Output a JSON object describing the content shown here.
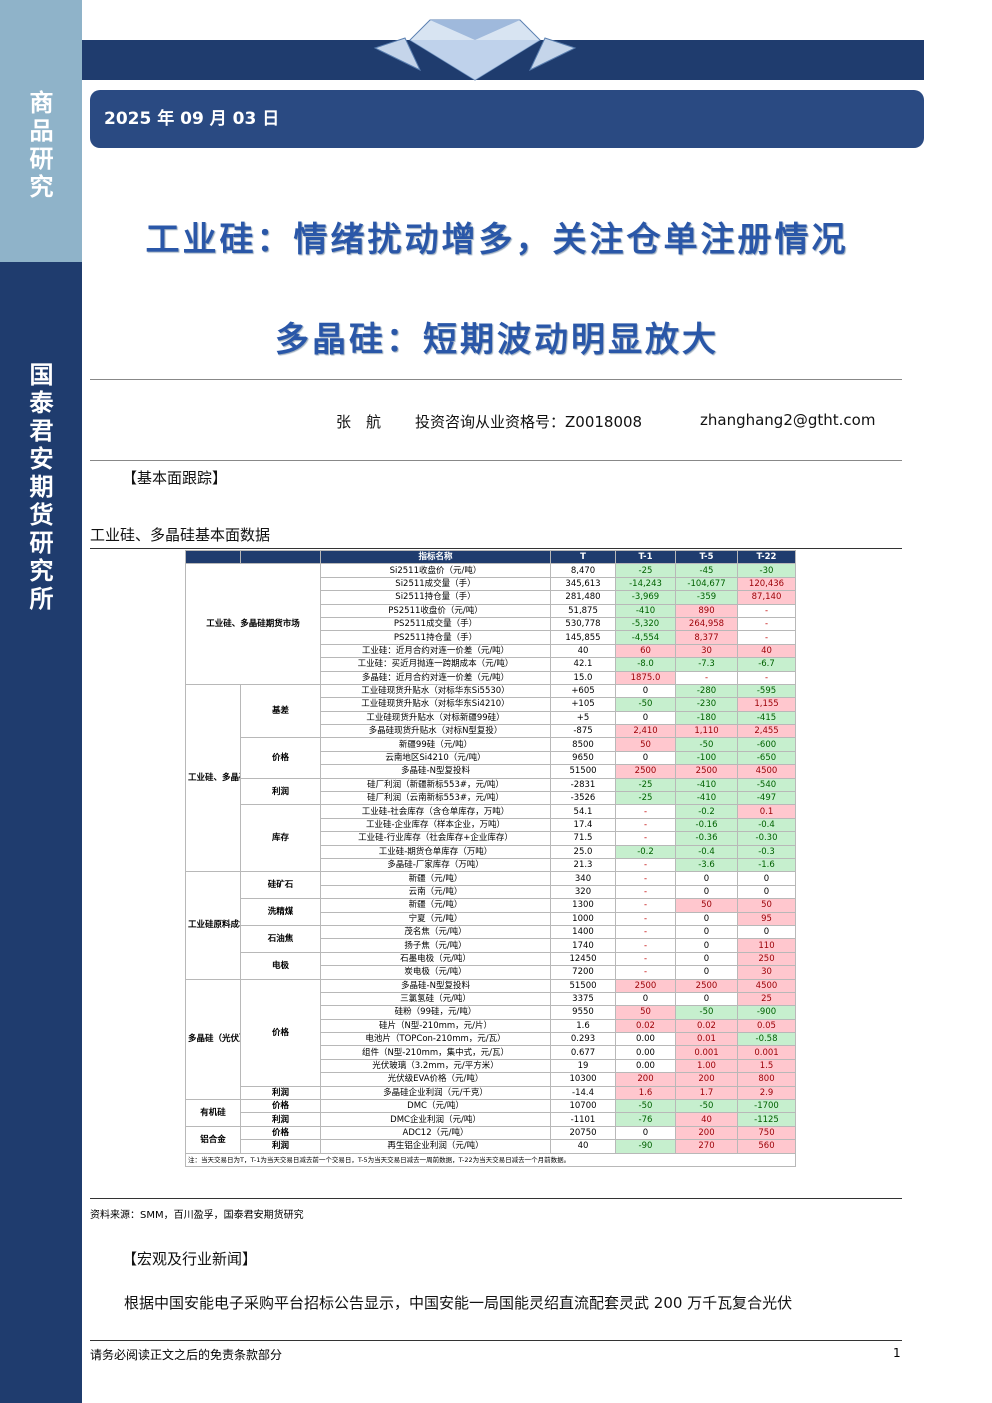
{
  "sidebar": {
    "top": "商品研究",
    "bottom": "国泰君安期货研究所"
  },
  "header": {
    "date": "2025 年 09 月 03 日",
    "title1": "工业硅：情绪扰动增多，关注仓单注册情况",
    "title2": "多晶硅：短期波动明显放大"
  },
  "author": {
    "name": "张　航",
    "license": "投资咨询从业资格号：Z0018008",
    "email": "zhanghang2@gtht.com"
  },
  "section1": "【基本面跟踪】",
  "table_title": "工业硅、多晶硅基本面数据",
  "table": {
    "header": [
      "指标名称",
      "T",
      "T-1",
      "T-5",
      "T-22"
    ],
    "groups": [
      {
        "label": "工业硅、多晶硅期货市场",
        "subgroups": [
          {
            "rows": [
              [
                "Si2511收盘价（元/吨）",
                "8,470",
                "-25",
                "-45",
                "-30"
              ],
              [
                "Si2511成交量（手）",
                "345,613",
                "-14,243",
                "-104,677",
                "120,436"
              ],
              [
                "Si2511持仓量（手）",
                "281,480",
                "-3,969",
                "-359",
                "87,140"
              ],
              [
                "PS2511收盘价（元/吨）",
                "51,875",
                "-410",
                "890",
                "-"
              ],
              [
                "PS2511成交量（手）",
                "530,778",
                "-5,320",
                "264,958",
                "-"
              ],
              [
                "PS2511持仓量（手）",
                "145,855",
                "-4,554",
                "8,377",
                "-"
              ],
              [
                "工业硅：近月合约对连一价差（元/吨）",
                "40",
                "60",
                "30",
                "40"
              ],
              [
                "工业硅：买近月抛连一跨期成本（元/吨）",
                "42.1",
                "-8.0",
                "-7.3",
                "-6.7"
              ],
              [
                "多晶硅：近月合约对连一价差（元/吨）",
                "15.0",
                "1875.0",
                "-",
                "-"
              ]
            ]
          }
        ]
      },
      {
        "label": "工业硅、多晶硅",
        "subgroups": [
          {
            "label": "基差",
            "rows": [
              [
                "工业硅现货升贴水（对标华东Si5530）",
                "+605",
                "0",
                "-280",
                "-595"
              ],
              [
                "工业硅现货升贴水（对标华东Si4210）",
                "+105",
                "-50",
                "-230",
                "1,155"
              ],
              [
                "工业硅现货升贴水（对标新疆99硅）",
                "+5",
                "0",
                "-180",
                "-415"
              ],
              [
                "多晶硅现货升贴水（对标N型复投）",
                "-875",
                "2,410",
                "1,110",
                "2,455"
              ]
            ]
          },
          {
            "label": "价格",
            "rows": [
              [
                "新疆99硅（元/吨）",
                "8500",
                "50",
                "-50",
                "-600"
              ],
              [
                "云南地区Si4210（元/吨）",
                "9650",
                "0",
                "-100",
                "-650"
              ],
              [
                "多晶硅-N型复投料",
                "51500",
                "2500",
                "2500",
                "4500"
              ]
            ]
          },
          {
            "label": "利润",
            "rows": [
              [
                "硅厂利润（新疆新标553#，元/吨）",
                "-2831",
                "-25",
                "-410",
                "-540"
              ],
              [
                "硅厂利润（云南新标553#，元/吨）",
                "-3526",
                "-25",
                "-410",
                "-497"
              ]
            ]
          },
          {
            "label": "库存",
            "rows": [
              [
                "工业硅-社会库存（含仓单库存，万吨）",
                "54.1",
                "-",
                "-0.2",
                "0.1"
              ],
              [
                "工业硅-企业库存（样本企业，万吨）",
                "17.4",
                "-",
                "-0.16",
                "-0.4"
              ],
              [
                "工业硅-行业库存（社会库存+企业库存）",
                "71.5",
                "-",
                "-0.36",
                "-0.30"
              ],
              [
                "工业硅-期货仓单库存（万吨）",
                "25.0",
                "-0.2",
                "-0.4",
                "-0.3"
              ],
              [
                "多晶硅-厂家库存（万吨）",
                "21.3",
                "-",
                "-3.6",
                "-1.6"
              ]
            ]
          }
        ]
      },
      {
        "label": "工业硅原料成本",
        "subgroups": [
          {
            "label": "硅矿石",
            "rows": [
              [
                "新疆（元/吨）",
                "340",
                "-",
                "0",
                "0"
              ],
              [
                "云南（元/吨）",
                "320",
                "-",
                "0",
                "0"
              ]
            ]
          },
          {
            "label": "洗精煤",
            "rows": [
              [
                "新疆（元/吨）",
                "1300",
                "-",
                "50",
                "50"
              ],
              [
                "宁夏（元/吨）",
                "1000",
                "-",
                "0",
                "95"
              ]
            ]
          },
          {
            "label": "石油焦",
            "rows": [
              [
                "茂名焦（元/吨）",
                "1400",
                "-",
                "0",
                "0"
              ],
              [
                "扬子焦（元/吨）",
                "1740",
                "-",
                "0",
                "110"
              ]
            ]
          },
          {
            "label": "电极",
            "rows": [
              [
                "石墨电极（元/吨）",
                "12450",
                "-",
                "0",
                "250"
              ],
              [
                "炭电极（元/吨）",
                "7200",
                "-",
                "0",
                "30"
              ]
            ]
          }
        ]
      },
      {
        "label": "多晶硅（光伏）",
        "subgroups": [
          {
            "label": "价格",
            "rows": [
              [
                "多晶硅-N型复投料",
                "51500",
                "2500",
                "2500",
                "4500"
              ],
              [
                "三氯氢硅（元/吨）",
                "3375",
                "0",
                "0",
                "25"
              ],
              [
                "硅粉（99硅，元/吨）",
                "9550",
                "50",
                "-50",
                "-900"
              ],
              [
                "硅片（N型-210mm，元/片）",
                "1.6",
                "0.02",
                "0.02",
                "0.05"
              ],
              [
                "电池片（TOPCon-210mm，元/瓦）",
                "0.293",
                "0.00",
                "0.01",
                "-0.58"
              ],
              [
                "组件（N型-210mm，集中式，元/瓦）",
                "0.677",
                "0.00",
                "0.001",
                "0.001"
              ],
              [
                "光伏玻璃（3.2mm，元/平方米）",
                "19",
                "0.00",
                "1.00",
                "1.5"
              ],
              [
                "光伏级EVA价格（元/吨）",
                "10300",
                "200",
                "200",
                "800"
              ]
            ]
          },
          {
            "label": "利润",
            "rows": [
              [
                "多晶硅企业利润（元/千克）",
                "-14.4",
                "1.6",
                "1.7",
                "2.9"
              ]
            ]
          }
        ]
      },
      {
        "label": "有机硅",
        "subgroups": [
          {
            "label": "价格",
            "rows": [
              [
                "DMC（元/吨）",
                "10700",
                "-50",
                "-50",
                "-1700"
              ]
            ]
          },
          {
            "label": "利润",
            "rows": [
              [
                "DMC企业利润（元/吨）",
                "-1101",
                "-76",
                "40",
                "-1125"
              ]
            ]
          }
        ]
      },
      {
        "label": "铝合金",
        "subgroups": [
          {
            "label": "价格",
            "rows": [
              [
                "ADC12（元/吨）",
                "20750",
                "0",
                "200",
                "750"
              ]
            ]
          },
          {
            "label": "利润",
            "rows": [
              [
                "再生铝企业利润（元/吨）",
                "40",
                "-90",
                "270",
                "560"
              ]
            ]
          }
        ]
      }
    ],
    "note": "注：当天交易日为T，T-1为当天交易日减去前一个交易日，T-5为当天交易日减去一周前数据，T-22为当天交易日减去一个月前数据。"
  },
  "source": "资料来源：SMM，百川盈孚，国泰君安期货研究",
  "section2": "【宏观及行业新闻】",
  "paragraph": "根据中国安能电子采购平台招标公告显示，中国安能一局国能灵绍直流配套灵武 200 万千瓦复合光伏",
  "footer": {
    "disclaimer": "请务必阅读正文之后的免责条款部分",
    "page": "1"
  }
}
